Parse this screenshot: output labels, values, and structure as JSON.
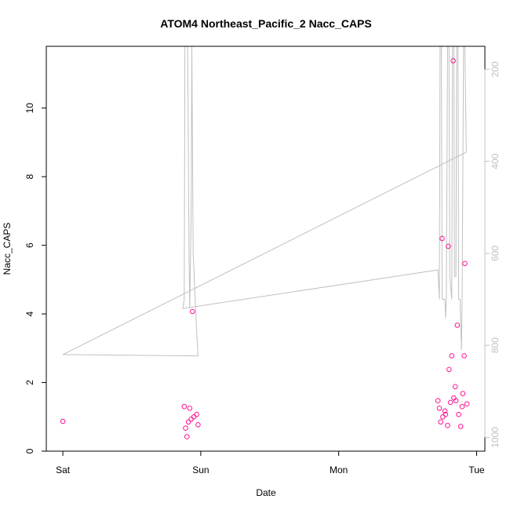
{
  "chart_data": {
    "type": "scatter",
    "title": "ATOM4 Northeast_Pacific_2 Nacc_CAPS",
    "xlabel": "Date",
    "ylabel": "Nacc_CAPS",
    "x_ticks": [
      {
        "label": "Sat",
        "value": 0
      },
      {
        "label": "Sun",
        "value": 1
      },
      {
        "label": "Mon",
        "value": 2
      },
      {
        "label": "Tue",
        "value": 3
      }
    ],
    "xlim": [
      -0.12,
      3.06
    ],
    "ylim": [
      0,
      11.8
    ],
    "y_ticks": [
      0,
      2,
      4,
      6,
      8,
      10
    ],
    "right_axis": {
      "ticks": [
        200,
        400,
        600,
        800,
        1000
      ],
      "lim": [
        1030,
        150
      ],
      "color": "#c0c0c0"
    },
    "grid": false,
    "series": [
      {
        "color": "#ff1493",
        "marker": "open-circle",
        "points": [
          [
            0.0,
            0.87
          ],
          [
            0.88,
            1.3
          ],
          [
            0.89,
            0.67
          ],
          [
            0.9,
            0.42
          ],
          [
            0.91,
            0.85
          ],
          [
            0.92,
            1.25
          ],
          [
            0.93,
            0.93
          ],
          [
            0.94,
            4.07
          ],
          [
            0.95,
            1.0
          ],
          [
            0.97,
            1.07
          ],
          [
            0.98,
            0.77
          ],
          [
            2.72,
            1.47
          ],
          [
            2.73,
            1.25
          ],
          [
            2.74,
            0.85
          ],
          [
            2.75,
            6.2
          ],
          [
            2.755,
            1.0
          ],
          [
            2.77,
            1.17
          ],
          [
            2.775,
            1.07
          ],
          [
            2.79,
            0.75
          ],
          [
            2.795,
            5.97
          ],
          [
            2.8,
            2.38
          ],
          [
            2.81,
            1.42
          ],
          [
            2.82,
            2.78
          ],
          [
            2.83,
            11.38
          ],
          [
            2.835,
            1.55
          ],
          [
            2.845,
            1.88
          ],
          [
            2.85,
            1.47
          ],
          [
            2.86,
            3.67
          ],
          [
            2.87,
            1.07
          ],
          [
            2.885,
            0.72
          ],
          [
            2.895,
            1.3
          ],
          [
            2.9,
            1.68
          ],
          [
            2.91,
            2.78
          ],
          [
            2.915,
            5.47
          ],
          [
            2.93,
            1.38
          ]
        ]
      },
      {
        "color": "#c0c0c0",
        "type": "line",
        "axis": "right",
        "points": [
          [
            0.0,
            820
          ],
          [
            0.98,
            823
          ],
          [
            0.97,
            770
          ],
          [
            0.945,
            600
          ],
          [
            0.935,
            150
          ],
          [
            0.93,
            520
          ],
          [
            0.92,
            720
          ],
          [
            0.915,
            600
          ],
          [
            0.905,
            150
          ],
          [
            0.885,
            150
          ],
          [
            0.88,
            700
          ],
          [
            0.87,
            720
          ],
          [
            2.72,
            636
          ],
          [
            2.73,
            700
          ],
          [
            2.735,
            150
          ],
          [
            2.745,
            150
          ],
          [
            2.75,
            700
          ],
          [
            2.77,
            700
          ],
          [
            2.775,
            740
          ],
          [
            2.78,
            700
          ],
          [
            2.79,
            150
          ],
          [
            2.8,
            150
          ],
          [
            2.805,
            650
          ],
          [
            2.82,
            700
          ],
          [
            2.825,
            150
          ],
          [
            2.835,
            150
          ],
          [
            2.84,
            650
          ],
          [
            2.85,
            650
          ],
          [
            2.855,
            150
          ],
          [
            2.865,
            150
          ],
          [
            2.87,
            700
          ],
          [
            2.88,
            700
          ],
          [
            2.89,
            810
          ],
          [
            2.895,
            700
          ],
          [
            2.905,
            150
          ],
          [
            2.915,
            150
          ],
          [
            2.925,
            380
          ],
          [
            0.0,
            820
          ]
        ]
      }
    ]
  }
}
